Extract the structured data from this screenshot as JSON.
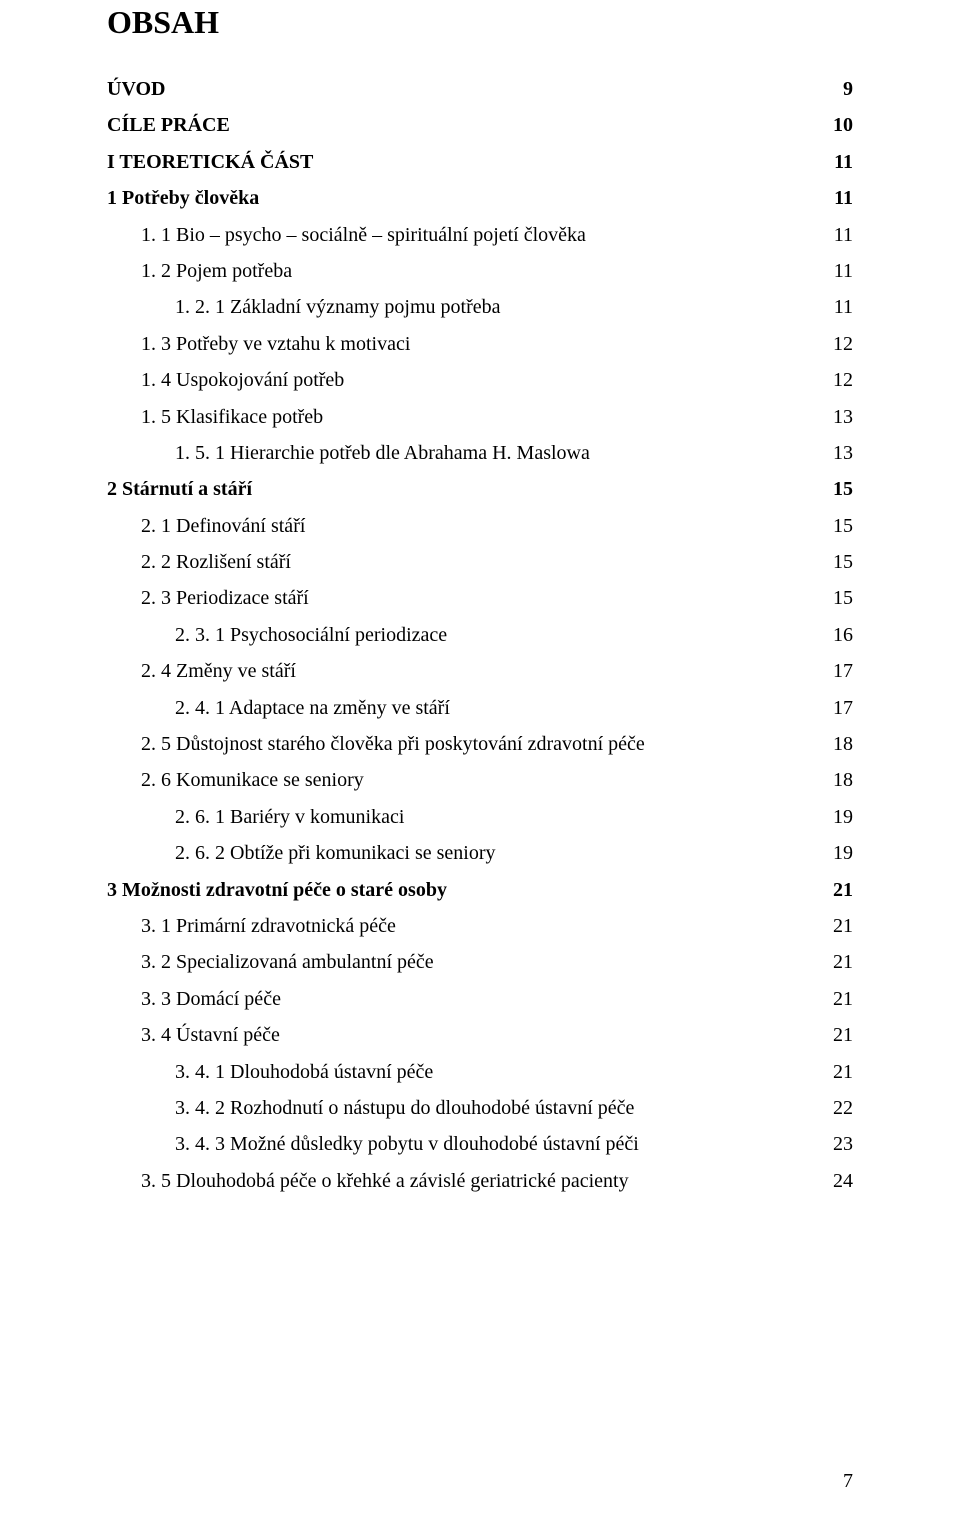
{
  "title": "OBSAH",
  "page_number": "7",
  "entries": [
    {
      "label": "ÚVOD",
      "page": "9",
      "bold": true,
      "indent": 0
    },
    {
      "label": "CÍLE PRÁCE",
      "page": "10",
      "bold": true,
      "indent": 0
    },
    {
      "label": "I TEORETICKÁ ČÁST",
      "page": "11",
      "bold": true,
      "indent": 0
    },
    {
      "label": "1 Potřeby člověka",
      "page": "11",
      "bold": true,
      "indent": 0
    },
    {
      "label": "1. 1 Bio – psycho – sociálně – spirituální pojetí člověka",
      "page": "11",
      "bold": false,
      "indent": 1
    },
    {
      "label": "1. 2 Pojem potřeba",
      "page": "11",
      "bold": false,
      "indent": 1
    },
    {
      "label": "1. 2. 1 Základní významy pojmu potřeba",
      "page": "11",
      "bold": false,
      "indent": 2
    },
    {
      "label": "1. 3 Potřeby ve vztahu k motivaci",
      "page": "12",
      "bold": false,
      "indent": 1
    },
    {
      "label": "1. 4 Uspokojování potřeb",
      "page": "12",
      "bold": false,
      "indent": 1
    },
    {
      "label": "1. 5 Klasifikace potřeb",
      "page": "13",
      "bold": false,
      "indent": 1
    },
    {
      "label": "1. 5. 1 Hierarchie potřeb dle Abrahama H. Maslowa",
      "page": "13",
      "bold": false,
      "indent": 2
    },
    {
      "label": "2 Stárnutí a stáří",
      "page": "15",
      "bold": true,
      "indent": 0
    },
    {
      "label": "2. 1 Definování stáří",
      "page": "15",
      "bold": false,
      "indent": 1
    },
    {
      "label": "2. 2 Rozlišení stáří",
      "page": "15",
      "bold": false,
      "indent": 1
    },
    {
      "label": "2. 3 Periodizace stáří",
      "page": "15",
      "bold": false,
      "indent": 1
    },
    {
      "label": "2. 3. 1 Psychosociální periodizace",
      "page": "16",
      "bold": false,
      "indent": 2
    },
    {
      "label": "2. 4 Změny ve stáří",
      "page": "17",
      "bold": false,
      "indent": 1
    },
    {
      "label": "2. 4. 1 Adaptace na změny ve stáří",
      "page": "17",
      "bold": false,
      "indent": 2
    },
    {
      "label": "2. 5 Důstojnost starého člověka při poskytování zdravotní péče",
      "page": "18",
      "bold": false,
      "indent": 1
    },
    {
      "label": "2. 6 Komunikace se seniory",
      "page": "18",
      "bold": false,
      "indent": 1
    },
    {
      "label": "2. 6. 1 Bariéry v komunikaci",
      "page": "19",
      "bold": false,
      "indent": 2
    },
    {
      "label": "2. 6. 2 Obtíže při komunikaci se seniory",
      "page": "19",
      "bold": false,
      "indent": 2
    },
    {
      "label": "3 Možnosti zdravotní péče o staré osoby",
      "page": "21",
      "bold": true,
      "indent": 0
    },
    {
      "label": "3. 1 Primární zdravotnická péče",
      "page": "21",
      "bold": false,
      "indent": 1
    },
    {
      "label": "3. 2 Specializovaná ambulantní péče",
      "page": "21",
      "bold": false,
      "indent": 1
    },
    {
      "label": "3. 3 Domácí péče",
      "page": "21",
      "bold": false,
      "indent": 1
    },
    {
      "label": "3. 4 Ústavní péče",
      "page": "21",
      "bold": false,
      "indent": 1
    },
    {
      "label": "3. 4. 1 Dlouhodobá ústavní péče",
      "page": "21",
      "bold": false,
      "indent": 2
    },
    {
      "label": "3. 4. 2 Rozhodnutí o nástupu do dlouhodobé ústavní péče",
      "page": "22",
      "bold": false,
      "indent": 2
    },
    {
      "label": "3. 4. 3 Možné důsledky pobytu v dlouhodobé ústavní péči",
      "page": "23",
      "bold": false,
      "indent": 2
    },
    {
      "label": "3. 5 Dlouhodobá péče o křehké a závislé geriatrické pacienty",
      "page": "24",
      "bold": false,
      "indent": 1
    }
  ]
}
